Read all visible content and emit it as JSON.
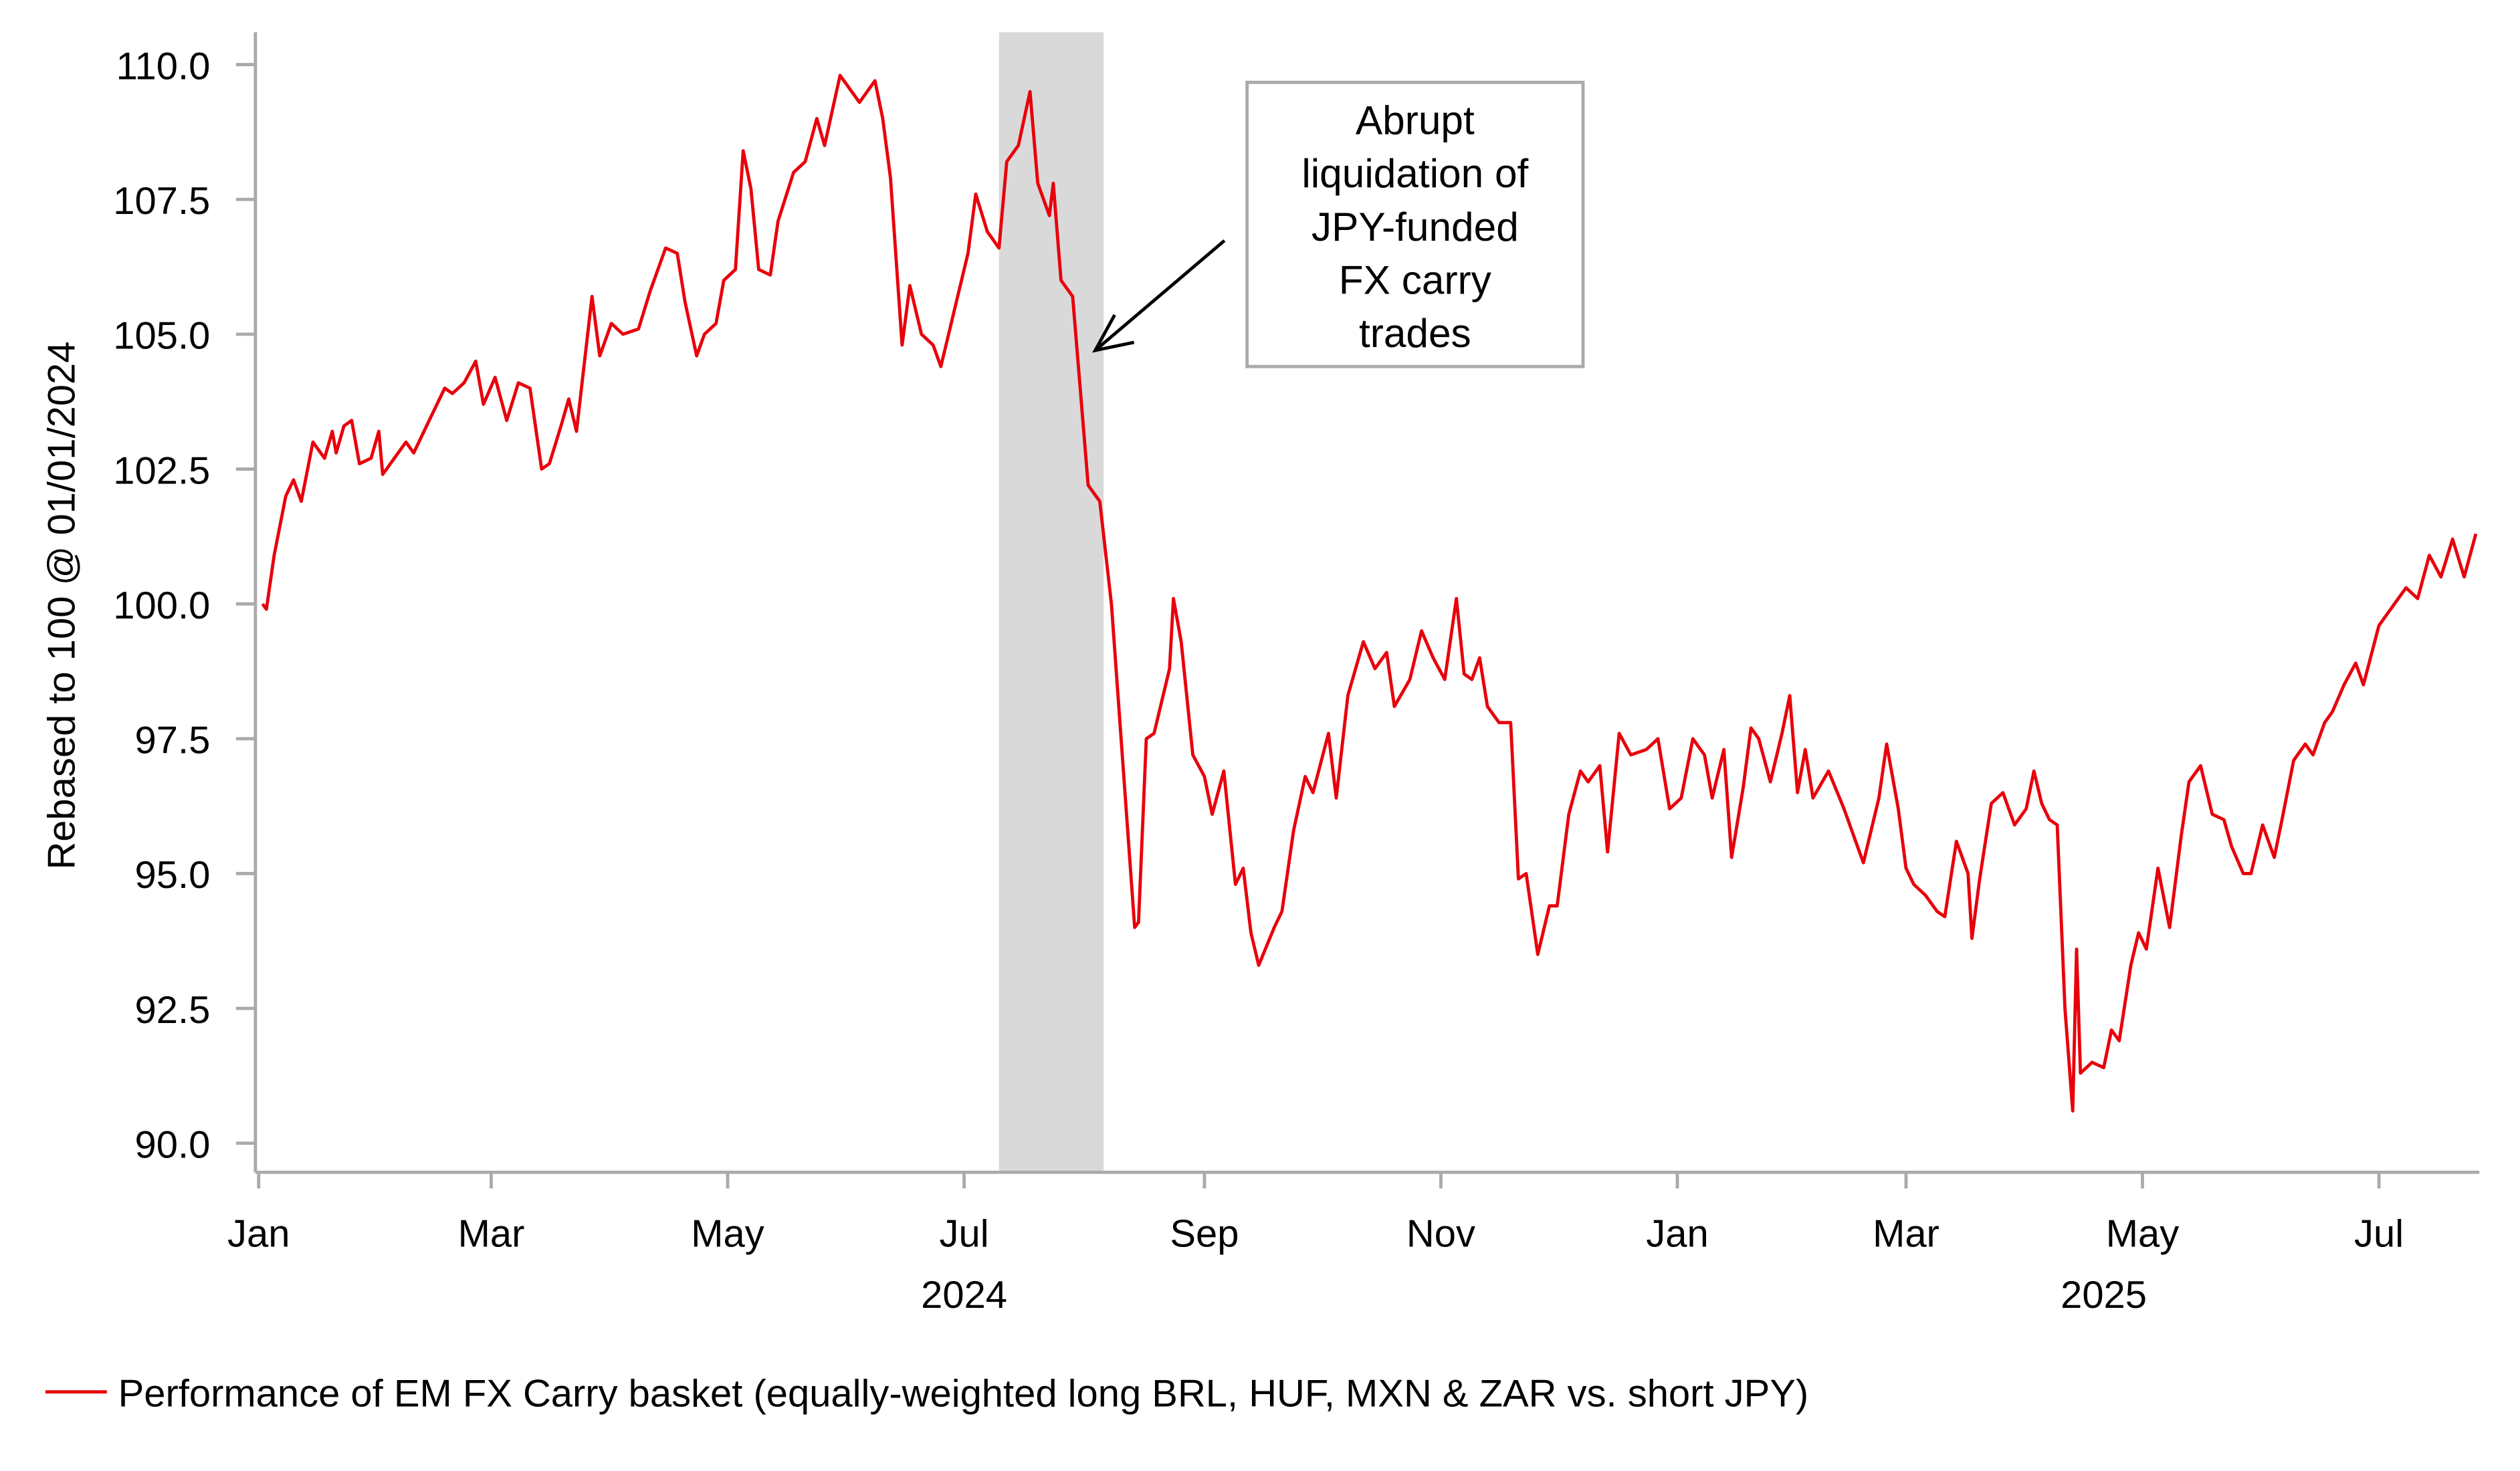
{
  "chart_data": {
    "type": "line",
    "title": "",
    "ylabel": "Rebased to 100 @ 01/01/2024",
    "xlabel": "",
    "ylim": [
      89.5,
      110.5
    ],
    "yticks": [
      "110.0",
      "107.5",
      "105.0",
      "102.5",
      "100.0",
      "97.5",
      "95.0",
      "92.5",
      "90.0"
    ],
    "ytick_values": [
      110,
      107.5,
      105,
      102.5,
      100,
      97.5,
      95,
      92.5,
      90
    ],
    "xticks": [
      {
        "label": "Jan",
        "date": "2024-01-01"
      },
      {
        "label": "Mar",
        "date": "2024-03-01"
      },
      {
        "label": "May",
        "date": "2024-05-01"
      },
      {
        "label": "Jul",
        "date": "2024-07-01"
      },
      {
        "label": "Sep",
        "date": "2024-09-01"
      },
      {
        "label": "Nov",
        "date": "2024-11-01"
      },
      {
        "label": "Jan",
        "date": "2025-01-01"
      },
      {
        "label": "Mar",
        "date": "2025-03-01"
      },
      {
        "label": "May",
        "date": "2025-05-01"
      },
      {
        "label": "Jul",
        "date": "2025-07-01"
      }
    ],
    "year_labels": [
      {
        "label": "2024",
        "date": "2024-07-01"
      },
      {
        "label": "2025",
        "date": "2025-04-21"
      }
    ],
    "shaded_region": {
      "start": "2024-07-10",
      "end": "2024-08-06",
      "color": "#d9d9d9"
    },
    "annotation": {
      "lines": [
        "Abrupt",
        "liquidation of",
        "JPY-funded",
        "FX carry",
        "trades"
      ]
    },
    "legend": {
      "position": "bottom-left",
      "label": "Performance of EM FX Carry basket (equally-weighted long BRL, HUF, MXN & ZAR vs. short JPY)"
    },
    "series": [
      {
        "name": "Performance of EM FX Carry basket (equally-weighted long BRL, HUF, MXN & ZAR vs. short JPY)",
        "color": "#e8000b",
        "points": [
          [
            "2024-01-02",
            100.0
          ],
          [
            "2024-01-03",
            99.9
          ],
          [
            "2024-01-05",
            100.9
          ],
          [
            "2024-01-08",
            102.0
          ],
          [
            "2024-01-10",
            102.3
          ],
          [
            "2024-01-12",
            101.9
          ],
          [
            "2024-01-15",
            103.0
          ],
          [
            "2024-01-18",
            102.7
          ],
          [
            "2024-01-20",
            103.2
          ],
          [
            "2024-01-21",
            102.8
          ],
          [
            "2024-01-23",
            103.3
          ],
          [
            "2024-01-25",
            103.4
          ],
          [
            "2024-01-27",
            102.6
          ],
          [
            "2024-01-30",
            102.7
          ],
          [
            "2024-02-01",
            103.2
          ],
          [
            "2024-02-02",
            102.4
          ],
          [
            "2024-02-05",
            102.7
          ],
          [
            "2024-02-08",
            103.0
          ],
          [
            "2024-02-10",
            102.8
          ],
          [
            "2024-02-14",
            103.4
          ],
          [
            "2024-02-18",
            104.0
          ],
          [
            "2024-02-20",
            103.9
          ],
          [
            "2024-02-23",
            104.1
          ],
          [
            "2024-02-26",
            104.5
          ],
          [
            "2024-02-28",
            103.7
          ],
          [
            "2024-03-02",
            104.2
          ],
          [
            "2024-03-05",
            103.4
          ],
          [
            "2024-03-08",
            104.1
          ],
          [
            "2024-03-11",
            104.0
          ],
          [
            "2024-03-14",
            102.5
          ],
          [
            "2024-03-16",
            102.6
          ],
          [
            "2024-03-19",
            103.3
          ],
          [
            "2024-03-21",
            103.8
          ],
          [
            "2024-03-23",
            103.2
          ],
          [
            "2024-03-27",
            105.7
          ],
          [
            "2024-03-29",
            104.6
          ],
          [
            "2024-04-01",
            105.2
          ],
          [
            "2024-04-04",
            105.0
          ],
          [
            "2024-04-08",
            105.1
          ],
          [
            "2024-04-11",
            105.8
          ],
          [
            "2024-04-15",
            106.6
          ],
          [
            "2024-04-18",
            106.5
          ],
          [
            "2024-04-20",
            105.6
          ],
          [
            "2024-04-23",
            104.6
          ],
          [
            "2024-04-25",
            105.0
          ],
          [
            "2024-04-28",
            105.2
          ],
          [
            "2024-04-30",
            106.0
          ],
          [
            "2024-05-03",
            106.2
          ],
          [
            "2024-05-05",
            108.4
          ],
          [
            "2024-05-07",
            107.7
          ],
          [
            "2024-05-09",
            106.2
          ],
          [
            "2024-05-12",
            106.1
          ],
          [
            "2024-05-14",
            107.1
          ],
          [
            "2024-05-18",
            108.0
          ],
          [
            "2024-05-21",
            108.2
          ],
          [
            "2024-05-24",
            109.0
          ],
          [
            "2024-05-26",
            108.5
          ],
          [
            "2024-05-30",
            109.8
          ],
          [
            "2024-06-02",
            109.5
          ],
          [
            "2024-06-04",
            109.3
          ],
          [
            "2024-06-08",
            109.7
          ],
          [
            "2024-06-10",
            109.0
          ],
          [
            "2024-06-12",
            107.9
          ],
          [
            "2024-06-15",
            104.8
          ],
          [
            "2024-06-17",
            105.9
          ],
          [
            "2024-06-20",
            105.0
          ],
          [
            "2024-06-23",
            104.8
          ],
          [
            "2024-06-25",
            104.4
          ],
          [
            "2024-06-27",
            105.0
          ],
          [
            "2024-06-30",
            105.9
          ],
          [
            "2024-07-02",
            106.5
          ],
          [
            "2024-07-04",
            107.6
          ],
          [
            "2024-07-07",
            106.9
          ],
          [
            "2024-07-10",
            106.6
          ],
          [
            "2024-07-12",
            108.2
          ],
          [
            "2024-07-15",
            108.5
          ],
          [
            "2024-07-18",
            109.5
          ],
          [
            "2024-07-20",
            107.8
          ],
          [
            "2024-07-23",
            107.2
          ],
          [
            "2024-07-24",
            107.8
          ],
          [
            "2024-07-26",
            106.0
          ],
          [
            "2024-07-29",
            105.7
          ],
          [
            "2024-08-02",
            102.2
          ],
          [
            "2024-08-05",
            101.9
          ],
          [
            "2024-08-08",
            100.0
          ],
          [
            "2024-08-11",
            97.0
          ],
          [
            "2024-08-14",
            94.0
          ],
          [
            "2024-08-15",
            94.1
          ],
          [
            "2024-08-17",
            97.5
          ],
          [
            "2024-08-19",
            97.6
          ],
          [
            "2024-08-23",
            98.8
          ],
          [
            "2024-08-24",
            100.1
          ],
          [
            "2024-08-26",
            99.3
          ],
          [
            "2024-08-29",
            97.2
          ],
          [
            "2024-09-01",
            96.8
          ],
          [
            "2024-09-03",
            96.1
          ],
          [
            "2024-09-06",
            96.9
          ],
          [
            "2024-09-09",
            94.8
          ],
          [
            "2024-09-11",
            95.1
          ],
          [
            "2024-09-13",
            93.9
          ],
          [
            "2024-09-15",
            93.3
          ],
          [
            "2024-09-19",
            94.0
          ],
          [
            "2024-09-21",
            94.3
          ],
          [
            "2024-09-24",
            95.8
          ],
          [
            "2024-09-27",
            96.8
          ],
          [
            "2024-09-29",
            96.5
          ],
          [
            "2024-10-03",
            97.6
          ],
          [
            "2024-10-05",
            96.4
          ],
          [
            "2024-10-08",
            98.3
          ],
          [
            "2024-10-12",
            99.3
          ],
          [
            "2024-10-15",
            98.8
          ],
          [
            "2024-10-18",
            99.1
          ],
          [
            "2024-10-20",
            98.1
          ],
          [
            "2024-10-24",
            98.6
          ],
          [
            "2024-10-27",
            99.5
          ],
          [
            "2024-10-30",
            99.0
          ],
          [
            "2024-11-02",
            98.6
          ],
          [
            "2024-11-05",
            100.1
          ],
          [
            "2024-11-07",
            98.7
          ],
          [
            "2024-11-09",
            98.6
          ],
          [
            "2024-11-11",
            99.0
          ],
          [
            "2024-11-13",
            98.1
          ],
          [
            "2024-11-16",
            97.8
          ],
          [
            "2024-11-19",
            97.8
          ],
          [
            "2024-11-21",
            94.9
          ],
          [
            "2024-11-23",
            95.0
          ],
          [
            "2024-11-26",
            93.5
          ],
          [
            "2024-11-29",
            94.4
          ],
          [
            "2024-12-01",
            94.4
          ],
          [
            "2024-12-04",
            96.1
          ],
          [
            "2024-12-07",
            96.9
          ],
          [
            "2024-12-09",
            96.7
          ],
          [
            "2024-12-12",
            97.0
          ],
          [
            "2024-12-14",
            95.4
          ],
          [
            "2024-12-17",
            97.6
          ],
          [
            "2024-12-20",
            97.2
          ],
          [
            "2024-12-24",
            97.3
          ],
          [
            "2024-12-27",
            97.5
          ],
          [
            "2024-12-30",
            96.2
          ],
          [
            "2025-01-02",
            96.4
          ],
          [
            "2025-01-05",
            97.5
          ],
          [
            "2025-01-08",
            97.2
          ],
          [
            "2025-01-10",
            96.4
          ],
          [
            "2025-01-13",
            97.3
          ],
          [
            "2025-01-15",
            95.3
          ],
          [
            "2025-01-18",
            96.6
          ],
          [
            "2025-01-20",
            97.7
          ],
          [
            "2025-01-22",
            97.5
          ],
          [
            "2025-01-25",
            96.7
          ],
          [
            "2025-01-28",
            97.6
          ],
          [
            "2025-01-30",
            98.3
          ],
          [
            "2025-02-01",
            96.5
          ],
          [
            "2025-02-03",
            97.3
          ],
          [
            "2025-02-05",
            96.4
          ],
          [
            "2025-02-09",
            96.9
          ],
          [
            "2025-02-13",
            96.2
          ],
          [
            "2025-02-16",
            95.6
          ],
          [
            "2025-02-18",
            95.2
          ],
          [
            "2025-02-22",
            96.4
          ],
          [
            "2025-02-24",
            97.4
          ],
          [
            "2025-02-27",
            96.2
          ],
          [
            "2025-03-01",
            95.1
          ],
          [
            "2025-03-03",
            94.8
          ],
          [
            "2025-03-06",
            94.6
          ],
          [
            "2025-03-09",
            94.3
          ],
          [
            "2025-03-11",
            94.2
          ],
          [
            "2025-03-14",
            95.6
          ],
          [
            "2025-03-17",
            95.0
          ],
          [
            "2025-03-18",
            93.8
          ],
          [
            "2025-03-20",
            94.9
          ],
          [
            "2025-03-23",
            96.3
          ],
          [
            "2025-03-26",
            96.5
          ],
          [
            "2025-03-29",
            95.9
          ],
          [
            "2025-04-01",
            96.2
          ],
          [
            "2025-04-03",
            96.9
          ],
          [
            "2025-04-05",
            96.3
          ],
          [
            "2025-04-07",
            96.0
          ],
          [
            "2025-04-09",
            95.9
          ],
          [
            "2025-04-11",
            92.5
          ],
          [
            "2025-04-13",
            90.6
          ],
          [
            "2025-04-14",
            93.6
          ],
          [
            "2025-04-15",
            91.3
          ],
          [
            "2025-04-18",
            91.5
          ],
          [
            "2025-04-21",
            91.4
          ],
          [
            "2025-04-23",
            92.1
          ],
          [
            "2025-04-25",
            91.9
          ],
          [
            "2025-04-28",
            93.3
          ],
          [
            "2025-04-30",
            93.9
          ],
          [
            "2025-05-02",
            93.6
          ],
          [
            "2025-05-05",
            95.1
          ],
          [
            "2025-05-08",
            94.0
          ],
          [
            "2025-05-11",
            95.7
          ],
          [
            "2025-05-13",
            96.7
          ],
          [
            "2025-05-16",
            97.0
          ],
          [
            "2025-05-19",
            96.1
          ],
          [
            "2025-05-22",
            96.0
          ],
          [
            "2025-05-24",
            95.5
          ],
          [
            "2025-05-27",
            95.0
          ],
          [
            "2025-05-29",
            95.0
          ],
          [
            "2025-06-01",
            95.9
          ],
          [
            "2025-06-04",
            95.3
          ],
          [
            "2025-06-06",
            96.0
          ],
          [
            "2025-06-09",
            97.1
          ],
          [
            "2025-06-12",
            97.4
          ],
          [
            "2025-06-14",
            97.2
          ],
          [
            "2025-06-17",
            97.8
          ],
          [
            "2025-06-19",
            98.0
          ],
          [
            "2025-06-22",
            98.5
          ],
          [
            "2025-06-25",
            98.9
          ],
          [
            "2025-06-27",
            98.5
          ],
          [
            "2025-07-01",
            99.6
          ],
          [
            "2025-07-03",
            99.8
          ],
          [
            "2025-07-05",
            100.0
          ],
          [
            "2025-07-08",
            100.3
          ],
          [
            "2025-07-11",
            100.1
          ],
          [
            "2025-07-14",
            100.9
          ],
          [
            "2025-07-17",
            100.5
          ],
          [
            "2025-07-20",
            101.2
          ],
          [
            "2025-07-23",
            100.5
          ],
          [
            "2025-07-26",
            101.3
          ]
        ]
      }
    ]
  }
}
